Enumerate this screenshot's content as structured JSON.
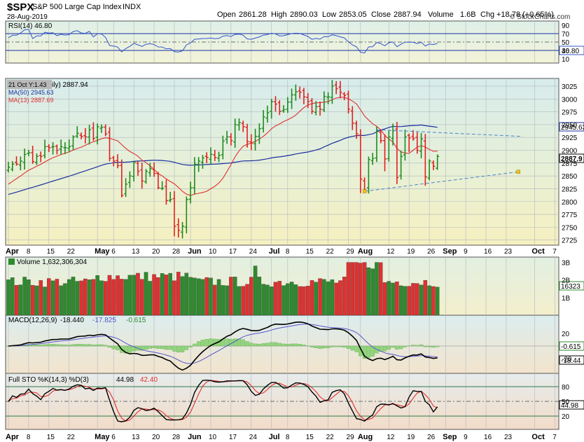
{
  "header": {
    "symbol": "$SPX",
    "name": "S&P 500 Large Cap Index",
    "exchange": "INDX",
    "date": "28-Aug-2019",
    "watermark": "© StockCharts.com",
    "open_label": "Open",
    "open": "2861.28",
    "high_label": "High",
    "high": "2890.03",
    "low_label": "Low",
    "low": "2853.05",
    "close_label": "Close",
    "close": "2887.94",
    "volume_label": "Volume",
    "volume": "1.6B",
    "chg_label": "Chg",
    "chg": "+18.78 (+0.65%)"
  },
  "colors": {
    "up": "#1f8a1f",
    "down": "#e02020",
    "ma50": "#1a2fa0",
    "ma13": "#e03030",
    "rsi": "#3355cc",
    "macd": "#000000",
    "signal": "#5555cc",
    "hist": "#8fd67a",
    "volume_up": "#2e8b2e",
    "volume_down": "#e03030",
    "trendline": "#4a86c8",
    "pivot": "#f0c020"
  },
  "rsi": {
    "legend": "RSI(14) 46.80",
    "current_label": "46.80",
    "ticks": [
      "90",
      "70",
      "50",
      "30",
      "10"
    ]
  },
  "price": {
    "tooltip": "21 Oct Y:1.43",
    "legend_main": "ily) 2887.94",
    "ma50_legend": "MA(50) 2945.63",
    "ma13_legend": "MA(13) 2887.69",
    "current_label": "2887.9",
    "ma50_label": "2945.63",
    "ticks": [
      "3025",
      "3000",
      "2975",
      "2950",
      "2925",
      "2900",
      "2875",
      "2850",
      "2825",
      "2800",
      "2775",
      "2750",
      "2725"
    ]
  },
  "volume": {
    "legend": "Volume 1,632,306,304",
    "current_label": "16323",
    "ticks": [
      "3B",
      "2B",
      "1B"
    ]
  },
  "macd": {
    "legend_name": "MACD(12,26,9)",
    "legend_v1": "-18.440",
    "legend_v2": "-17.825",
    "legend_v3": "-0.615",
    "hist_label": "-0.615",
    "macd_label": "-18.44",
    "ticks": [
      "20",
      "0",
      "-20"
    ]
  },
  "sto": {
    "legend_name": "Full STO %K(14,3) %D(3)",
    "legend_v1": "44.98",
    "legend_v2": "42.40",
    "current_label": "44.98",
    "ticks": [
      "80",
      "50",
      "20"
    ]
  },
  "x_axis": {
    "labels": [
      {
        "t": "Apr",
        "d": 0,
        "b": true
      },
      {
        "t": "8",
        "d": 5
      },
      {
        "t": "15",
        "d": 10
      },
      {
        "t": "22",
        "d": 15
      },
      {
        "t": "May",
        "d": 22,
        "b": true
      },
      {
        "t": "6",
        "d": 26
      },
      {
        "t": "13",
        "d": 31
      },
      {
        "t": "20",
        "d": 36
      },
      {
        "t": "28",
        "d": 41
      },
      {
        "t": "Jun",
        "d": 45,
        "b": true
      },
      {
        "t": "10",
        "d": 50
      },
      {
        "t": "17",
        "d": 55
      },
      {
        "t": "24",
        "d": 60
      },
      {
        "t": "Jul",
        "d": 65,
        "b": true
      },
      {
        "t": "8",
        "d": 69
      },
      {
        "t": "15",
        "d": 74
      },
      {
        "t": "22",
        "d": 79
      },
      {
        "t": "29",
        "d": 84
      },
      {
        "t": "Aug",
        "d": 87,
        "b": true
      },
      {
        "t": "12",
        "d": 94
      },
      {
        "t": "19",
        "d": 99
      },
      {
        "t": "26",
        "d": 104
      },
      {
        "t": "Sep",
        "d": 108,
        "b": true
      },
      {
        "t": "9",
        "d": 113
      },
      {
        "t": "16",
        "d": 118
      },
      {
        "t": "23",
        "d": 123
      },
      {
        "t": "Oct",
        "d": 130,
        "b": true
      },
      {
        "t": "7",
        "d": 135
      }
    ]
  },
  "chart_data": {
    "type": "ohlc",
    "title": "$SPX S&P 500 Large Cap Index INDX",
    "x_start": "1-Apr-2019",
    "closes": [
      2867,
      2873,
      2873,
      2879,
      2892,
      2895,
      2878,
      2888,
      2888,
      2907,
      2905,
      2907,
      2900,
      2907,
      2905,
      2907,
      2926,
      2933,
      2927,
      2926,
      2940,
      2923,
      2946,
      2945,
      2932,
      2884,
      2879,
      2870,
      2812,
      2834,
      2850,
      2876,
      2859,
      2840,
      2859,
      2864,
      2855,
      2827,
      2826,
      2802,
      2804,
      2752,
      2744,
      2752,
      2804,
      2827,
      2873,
      2879,
      2885,
      2886,
      2892,
      2886,
      2890,
      2918,
      2926,
      2919,
      2950,
      2954,
      2946,
      2917,
      2914,
      2927,
      2942,
      2965,
      2973,
      2995,
      2990,
      2976,
      2979,
      2994,
      3008,
      3014,
      3013,
      3004,
      2995,
      2976,
      2985,
      2980,
      3005,
      3004,
      3025,
      3020,
      3013,
      3007,
      2980,
      2953,
      2932,
      2844,
      2823,
      2882,
      2884,
      2938,
      2919,
      2883,
      2926,
      2938,
      2847,
      2888,
      2926,
      2924,
      2923,
      2900,
      2922,
      2848,
      2879,
      2869,
      2888
    ],
    "ma50_series_name": "MA(50)",
    "ma13_series_name": "MA(13)",
    "y_range": [
      2715,
      3040
    ],
    "trendlines": [
      {
        "from_day": 91,
        "from": 2940,
        "to_day": 127,
        "to": 2927
      },
      {
        "from_day": 88,
        "from": 2820,
        "to_day": 126,
        "to": 2858
      }
    ]
  }
}
